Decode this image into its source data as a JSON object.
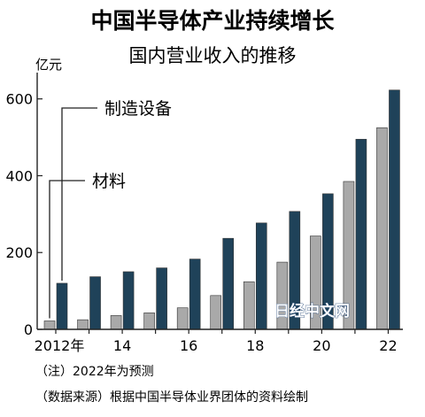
{
  "header": {
    "title": "中国半导体产业持续增长",
    "subtitle": "国内营业收入的推移"
  },
  "footer": {
    "note_1": "（注）2022年为预测",
    "note_2": "（数据来源）根据中国半导体业界团体的资料绘制",
    "credit": "资料绘制",
    "watermark": "日经中文网"
  },
  "colors": {
    "materials": "#a9a9a9",
    "equipment": "#1f4259",
    "axis": "#222222"
  },
  "chart_data": {
    "type": "bar",
    "title": "中国半导体产业持续增长",
    "subtitle": "国内营业收入的推移",
    "unit_label": "亿元",
    "x": [
      2012,
      2013,
      2014,
      2015,
      2016,
      2017,
      2018,
      2019,
      2020,
      2021,
      2022
    ],
    "x_tick_labels": [
      "2012年",
      "",
      "14",
      "",
      "16",
      "",
      "18",
      "",
      "20",
      "",
      "22"
    ],
    "y_ticks": [
      0,
      200,
      400,
      600
    ],
    "ylim": [
      0,
      650
    ],
    "grid": false,
    "legend_placement": "upper-left",
    "series": [
      {
        "name": "材料",
        "color": "#a9a9a9",
        "values": [
          22,
          25,
          36,
          43,
          56,
          88,
          124,
          175,
          243,
          385,
          525
        ]
      },
      {
        "name": "制造设备",
        "color": "#1f4259",
        "values": [
          120,
          137,
          150,
          160,
          183,
          237,
          277,
          307,
          353,
          495,
          623
        ]
      }
    ]
  }
}
